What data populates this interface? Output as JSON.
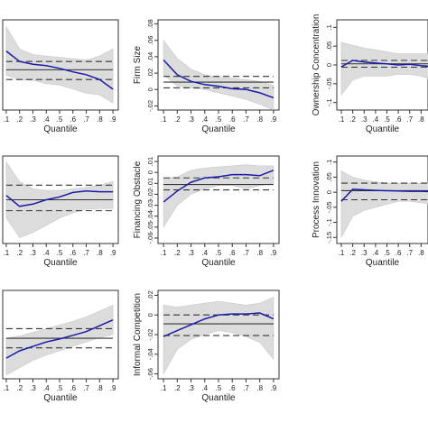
{
  "chart_data": [
    {
      "type": "line",
      "title": "",
      "ylabel": "",
      "xlabel": "Quantile",
      "x": [
        0.1,
        0.2,
        0.3,
        0.4,
        0.5,
        0.6,
        0.7,
        0.8,
        0.9
      ],
      "x_ticks": [
        ".1",
        ".2",
        ".3",
        ".4",
        ".5",
        ".6",
        ".7",
        ".8",
        ".9"
      ],
      "ylim": [
        -0.04,
        0.09
      ],
      "y_ticks": [],
      "series": [
        {
          "role": "ci_upper",
          "values": [
            0.08,
            0.048,
            0.04,
            0.038,
            0.036,
            0.034,
            0.032,
            0.038,
            0.048
          ]
        },
        {
          "role": "ci_lower",
          "values": [
            0.01,
            0.004,
            0.003,
            -0.002,
            -0.004,
            -0.01,
            -0.016,
            -0.018,
            -0.03
          ]
        },
        {
          "role": "estimate",
          "values": [
            0.045,
            0.03,
            0.026,
            0.024,
            0.02,
            0.015,
            0.011,
            0.004,
            -0.01
          ]
        }
      ],
      "ols": {
        "estimate": 0.018,
        "ci_upper": 0.03,
        "ci_lower": 0.004
      },
      "clip_left": true
    },
    {
      "type": "line",
      "title": "",
      "ylabel": "Firm Size",
      "xlabel": "Quantile",
      "x": [
        0.1,
        0.2,
        0.3,
        0.4,
        0.5,
        0.6,
        0.7,
        0.8,
        0.9
      ],
      "x_ticks": [
        ".1",
        ".2",
        ".3",
        ".4",
        ".5",
        ".6",
        ".7",
        ".8",
        ".9"
      ],
      "ylim": [
        -0.025,
        0.085
      ],
      "y_ticks": [
        {
          "v": -0.02,
          "label": "-.02"
        },
        {
          "v": 0,
          "label": "0"
        },
        {
          "v": 0.02,
          "label": ".02"
        },
        {
          "v": 0.04,
          "label": ".04"
        },
        {
          "v": 0.06,
          "label": ".06"
        },
        {
          "v": 0.08,
          "label": ".08"
        }
      ],
      "series": [
        {
          "role": "ci_upper",
          "values": [
            0.06,
            0.038,
            0.025,
            0.018,
            0.015,
            0.014,
            0.012,
            0.01,
            0.005
          ]
        },
        {
          "role": "ci_lower",
          "values": [
            0.018,
            0.004,
            0.002,
            0.0,
            -0.004,
            -0.008,
            -0.012,
            -0.018,
            -0.025
          ]
        },
        {
          "role": "estimate",
          "values": [
            0.036,
            0.018,
            0.01,
            0.006,
            0.004,
            0.001,
            0.0,
            -0.004,
            -0.01
          ]
        }
      ],
      "ols": {
        "estimate": 0.009,
        "ci_upper": 0.016,
        "ci_lower": 0.002
      }
    },
    {
      "type": "line",
      "title": "",
      "ylabel": "Ownership Concentration",
      "xlabel": "Quantile",
      "x": [
        0.1,
        0.2,
        0.3,
        0.4,
        0.5,
        0.6,
        0.7,
        0.8,
        0.9
      ],
      "x_ticks": [
        ".1",
        ".2",
        ".3",
        ".4",
        ".5",
        ".6",
        ".7",
        ".8",
        ".9"
      ],
      "ylim": [
        -0.12,
        0.12
      ],
      "y_ticks": [
        {
          "v": -0.1,
          "label": "-.1"
        },
        {
          "v": -0.05,
          "label": "-.05"
        },
        {
          "v": 0,
          "label": "0"
        },
        {
          "v": 0.05,
          "label": ".05"
        },
        {
          "v": 0.1,
          "label": ".1"
        }
      ],
      "series": [
        {
          "role": "ci_upper",
          "values": [
            0.06,
            0.052,
            0.045,
            0.04,
            0.035,
            0.03,
            0.03,
            0.03,
            0.03
          ]
        },
        {
          "role": "ci_lower",
          "values": [
            -0.08,
            -0.04,
            -0.03,
            -0.03,
            -0.03,
            -0.025,
            -0.025,
            -0.03,
            -0.04
          ]
        },
        {
          "role": "estimate",
          "values": [
            -0.005,
            0.012,
            0.008,
            0.005,
            0.003,
            0.0,
            0.002,
            -0.002,
            -0.004
          ]
        }
      ],
      "ols": {
        "estimate": 0.003,
        "ci_upper": 0.012,
        "ci_lower": -0.006
      },
      "clip_right": true
    },
    {
      "type": "line",
      "title": "",
      "ylabel": "",
      "xlabel": "Quantile",
      "x": [
        0.1,
        0.2,
        0.3,
        0.4,
        0.5,
        0.6,
        0.7,
        0.8,
        0.9
      ],
      "x_ticks": [
        ".1",
        ".2",
        ".3",
        ".4",
        ".5",
        ".6",
        ".7",
        ".8",
        ".9"
      ],
      "ylim": [
        -0.06,
        0.06
      ],
      "y_ticks": [],
      "series": [
        {
          "role": "ci_upper",
          "values": [
            0.052,
            0.025,
            0.015,
            0.013,
            0.013,
            0.015,
            0.017,
            0.02,
            0.025
          ]
        },
        {
          "role": "ci_lower",
          "values": [
            -0.025,
            -0.052,
            -0.045,
            -0.035,
            -0.025,
            -0.018,
            -0.013,
            -0.012,
            -0.012
          ]
        },
        {
          "role": "estimate",
          "values": [
            0.006,
            -0.009,
            -0.006,
            0.0,
            0.004,
            0.01,
            0.012,
            0.011,
            0.011
          ]
        }
      ],
      "ols": {
        "estimate": 0.0,
        "ci_upper": 0.02,
        "ci_lower": -0.015
      },
      "clip_left": true
    },
    {
      "type": "line",
      "title": "",
      "ylabel": "Financing Obstacle",
      "xlabel": "Quantile",
      "x": [
        0.1,
        0.2,
        0.3,
        0.4,
        0.5,
        0.6,
        0.7,
        0.8,
        0.9
      ],
      "x_ticks": [
        ".1",
        ".2",
        ".3",
        ".4",
        ".5",
        ".6",
        ".7",
        ".8",
        ".9"
      ],
      "ylim": [
        -0.065,
        0.015
      ],
      "y_ticks": [
        {
          "v": -0.06,
          "label": "-.06"
        },
        {
          "v": -0.05,
          "label": "-.05"
        },
        {
          "v": -0.04,
          "label": "-.04"
        },
        {
          "v": -0.03,
          "label": "-.03"
        },
        {
          "v": -0.02,
          "label": "-.02"
        },
        {
          "v": -0.01,
          "label": "-.01"
        },
        {
          "v": 0,
          "label": "0"
        },
        {
          "v": 0.01,
          "label": ".01"
        }
      ],
      "series": [
        {
          "role": "ci_upper",
          "values": [
            -0.005,
            -0.004,
            0.002,
            0.004,
            0.005,
            0.006,
            0.007,
            0.006,
            0.006
          ]
        },
        {
          "role": "ci_lower",
          "values": [
            -0.05,
            -0.03,
            -0.02,
            -0.015,
            -0.012,
            -0.012,
            -0.015,
            -0.012,
            -0.01
          ]
        },
        {
          "role": "estimate",
          "values": [
            -0.027,
            -0.017,
            -0.009,
            -0.005,
            -0.004,
            -0.002,
            -0.002,
            -0.003,
            0.002
          ]
        }
      ],
      "ols": {
        "estimate": -0.011,
        "ci_upper": -0.005,
        "ci_lower": -0.016
      }
    },
    {
      "type": "line",
      "title": "",
      "ylabel": "Process Innovation",
      "xlabel": "Quantile",
      "x": [
        0.1,
        0.2,
        0.3,
        0.4,
        0.5,
        0.6,
        0.7,
        0.8,
        0.9
      ],
      "x_ticks": [
        ".1",
        ".2",
        ".3",
        ".4",
        ".5",
        ".6",
        ".7",
        ".8",
        ".9"
      ],
      "ylim": [
        -0.17,
        0.12
      ],
      "y_ticks": [
        {
          "v": -0.15,
          "label": "-.15"
        },
        {
          "v": -0.1,
          "label": "-.1"
        },
        {
          "v": -0.05,
          "label": "-.05"
        },
        {
          "v": 0,
          "label": "0"
        },
        {
          "v": 0.05,
          "label": ".05"
        },
        {
          "v": 0.1,
          "label": ".1"
        }
      ],
      "series": [
        {
          "role": "ci_upper",
          "values": [
            0.07,
            0.05,
            0.04,
            0.035,
            0.03,
            0.03,
            0.03,
            0.03,
            0.03
          ]
        },
        {
          "role": "ci_lower",
          "values": [
            -0.15,
            -0.08,
            -0.06,
            -0.05,
            -0.04,
            -0.03,
            -0.03,
            -0.035,
            -0.04
          ]
        },
        {
          "role": "estimate",
          "values": [
            -0.03,
            0.01,
            0.008,
            0.006,
            0.005,
            0.004,
            0.003,
            0.003,
            0.002
          ]
        }
      ],
      "ols": {
        "estimate": 0.005,
        "ci_upper": 0.03,
        "ci_lower": -0.025
      },
      "clip_right": true
    },
    {
      "type": "line",
      "title": "",
      "ylabel": "",
      "xlabel": "Quantile",
      "x": [
        0.1,
        0.2,
        0.3,
        0.4,
        0.5,
        0.6,
        0.7,
        0.8,
        0.9
      ],
      "x_ticks": [
        ".1",
        ".2",
        ".3",
        ".4",
        ".5",
        ".6",
        ".7",
        ".8",
        ".9"
      ],
      "ylim": [
        -0.06,
        0.06
      ],
      "y_ticks": [],
      "series": [
        {
          "role": "ci_upper",
          "values": [
            -0.005,
            -0.002,
            0.003,
            0.008,
            0.013,
            0.018,
            0.024,
            0.032,
            0.04
          ]
        },
        {
          "role": "ci_lower",
          "values": [
            -0.055,
            -0.045,
            -0.035,
            -0.028,
            -0.022,
            -0.016,
            -0.01,
            -0.004,
            0.0
          ]
        },
        {
          "role": "estimate",
          "values": [
            -0.032,
            -0.022,
            -0.016,
            -0.01,
            -0.006,
            -0.001,
            0.004,
            0.012,
            0.02
          ]
        }
      ],
      "ols": {
        "estimate": -0.005,
        "ci_upper": 0.008,
        "ci_lower": -0.018
      },
      "clip_left": true
    },
    {
      "type": "line",
      "title": "",
      "ylabel": "Informal Competition",
      "xlabel": "Quantile",
      "x": [
        0.1,
        0.2,
        0.3,
        0.4,
        0.5,
        0.6,
        0.7,
        0.8,
        0.9
      ],
      "x_ticks": [
        ".1",
        ".2",
        ".3",
        ".4",
        ".5",
        ".6",
        ".7",
        ".8",
        ".9"
      ],
      "ylim": [
        -0.065,
        0.025
      ],
      "y_ticks": [
        {
          "v": -0.06,
          "label": "-.06"
        },
        {
          "v": -0.04,
          "label": "-.04"
        },
        {
          "v": -0.02,
          "label": "-.02"
        },
        {
          "v": 0,
          "label": "0"
        },
        {
          "v": 0.02,
          "label": ".02"
        }
      ],
      "series": [
        {
          "role": "ci_upper",
          "values": [
            0.01,
            0.008,
            0.01,
            0.012,
            0.014,
            0.012,
            0.01,
            0.012,
            0.018
          ]
        },
        {
          "role": "ci_lower",
          "values": [
            -0.06,
            -0.035,
            -0.025,
            -0.02,
            -0.016,
            -0.018,
            -0.022,
            -0.028,
            -0.045
          ]
        },
        {
          "role": "estimate",
          "values": [
            -0.022,
            -0.016,
            -0.01,
            -0.004,
            0.0,
            0.001,
            0.001,
            0.002,
            -0.004
          ]
        }
      ],
      "ols": {
        "estimate": -0.009,
        "ci_upper": 0.0,
        "ci_lower": -0.021
      }
    }
  ]
}
